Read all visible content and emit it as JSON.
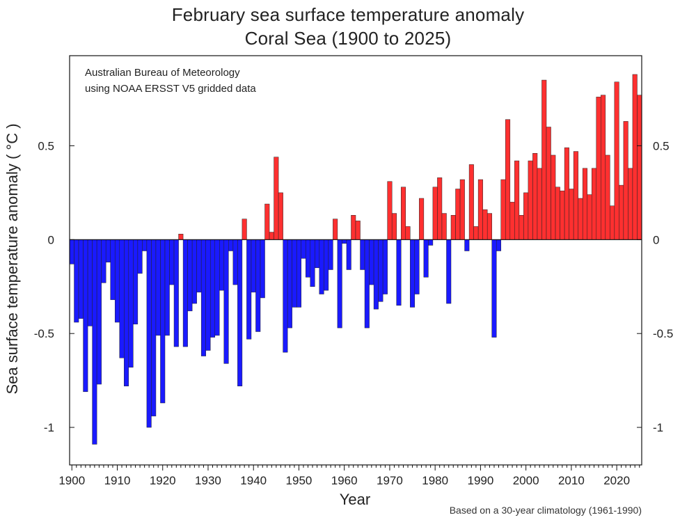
{
  "chart_data": {
    "type": "bar",
    "title": "February sea surface temperature anomaly",
    "subtitle": "Coral Sea (1900 to 2025)",
    "credit_lines": [
      "Australian Bureau of Meteorology",
      "using NOAA ERSST V5 gridded data"
    ],
    "xlabel": "Year",
    "ylabel": "Sea surface temperature anomaly ( °C )",
    "footnote": "Based on a 30-year climatology (1961-1990)",
    "x_ticks": [
      "1900",
      "1910",
      "1920",
      "1930",
      "1940",
      "1950",
      "1960",
      "1970",
      "1980",
      "1990",
      "2000",
      "2010",
      "2020"
    ],
    "y_ticks": [
      {
        "value": 0.5,
        "label": "0.5"
      },
      {
        "value": 0,
        "label": "0"
      },
      {
        "value": -0.5,
        "label": "-0.5"
      },
      {
        "value": -1,
        "label": "-1"
      }
    ],
    "xlim": [
      1899.5,
      2025.5
    ],
    "ylim": [
      -1.2,
      0.98
    ],
    "colors": {
      "positive": "#ff3030",
      "negative": "#1a1aff",
      "outline": "#222222"
    },
    "years": [
      1900,
      1901,
      1902,
      1903,
      1904,
      1905,
      1906,
      1907,
      1908,
      1909,
      1910,
      1911,
      1912,
      1913,
      1914,
      1915,
      1916,
      1917,
      1918,
      1919,
      1920,
      1921,
      1922,
      1923,
      1924,
      1925,
      1926,
      1927,
      1928,
      1929,
      1930,
      1931,
      1932,
      1933,
      1934,
      1935,
      1936,
      1937,
      1938,
      1939,
      1940,
      1941,
      1942,
      1943,
      1944,
      1945,
      1946,
      1947,
      1948,
      1949,
      1950,
      1951,
      1952,
      1953,
      1954,
      1955,
      1956,
      1957,
      1958,
      1959,
      1960,
      1961,
      1962,
      1963,
      1964,
      1965,
      1966,
      1967,
      1968,
      1969,
      1970,
      1971,
      1972,
      1973,
      1974,
      1975,
      1976,
      1977,
      1978,
      1979,
      1980,
      1981,
      1982,
      1983,
      1984,
      1985,
      1986,
      1987,
      1988,
      1989,
      1990,
      1991,
      1992,
      1993,
      1994,
      1995,
      1996,
      1997,
      1998,
      1999,
      2000,
      2001,
      2002,
      2003,
      2004,
      2005,
      2006,
      2007,
      2008,
      2009,
      2010,
      2011,
      2012,
      2013,
      2014,
      2015,
      2016,
      2017,
      2018,
      2019,
      2020,
      2021,
      2022,
      2023,
      2024,
      2025
    ],
    "values": [
      -0.13,
      -0.44,
      -0.42,
      -0.81,
      -0.46,
      -1.09,
      -0.77,
      -0.23,
      -0.12,
      -0.32,
      -0.44,
      -0.63,
      -0.78,
      -0.68,
      -0.45,
      -0.18,
      -0.06,
      -1.0,
      -0.94,
      -0.51,
      -0.87,
      -0.51,
      -0.24,
      -0.57,
      0.03,
      -0.57,
      -0.38,
      -0.34,
      -0.28,
      -0.62,
      -0.59,
      -0.52,
      -0.51,
      -0.27,
      -0.66,
      -0.06,
      -0.24,
      -0.78,
      0.11,
      -0.53,
      -0.28,
      -0.49,
      -0.31,
      0.19,
      0.04,
      0.44,
      0.25,
      -0.6,
      -0.47,
      -0.36,
      -0.36,
      -0.1,
      -0.2,
      -0.25,
      -0.15,
      -0.29,
      -0.27,
      -0.16,
      0.11,
      -0.47,
      -0.02,
      -0.16,
      0.13,
      0.1,
      -0.16,
      -0.47,
      -0.24,
      -0.37,
      -0.33,
      -0.29,
      0.31,
      0.14,
      -0.35,
      0.28,
      0.07,
      -0.36,
      -0.29,
      0.22,
      -0.2,
      -0.03,
      0.28,
      0.33,
      0.14,
      -0.34,
      0.13,
      0.27,
      0.32,
      -0.06,
      0.4,
      0.07,
      0.32,
      0.16,
      0.14,
      -0.52,
      -0.06,
      0.32,
      0.64,
      0.2,
      0.42,
      0.13,
      0.25,
      0.42,
      0.46,
      0.38,
      0.85,
      0.6,
      0.45,
      0.28,
      0.26,
      0.49,
      0.27,
      0.47,
      0.22,
      0.38,
      0.24,
      0.38,
      0.76,
      0.77,
      0.45,
      0.18,
      0.84,
      0.29,
      0.63,
      0.38,
      0.88,
      0.77
    ]
  }
}
